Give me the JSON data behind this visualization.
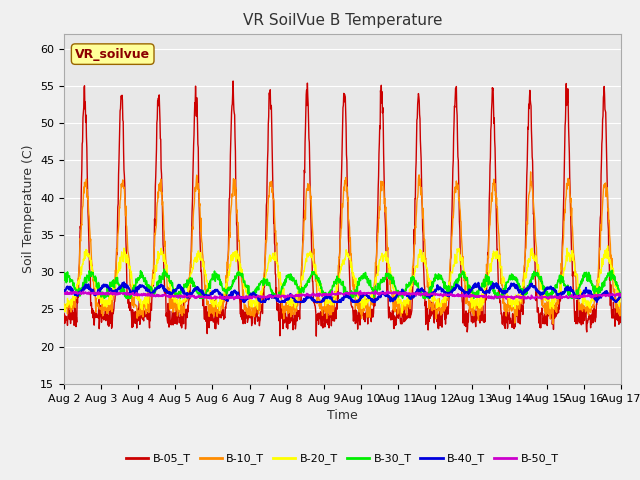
{
  "title": "VR SoilVue B Temperature",
  "xlabel": "Time",
  "ylabel": "Soil Temperature (C)",
  "ylim": [
    15,
    62
  ],
  "yticks": [
    15,
    20,
    25,
    30,
    35,
    40,
    45,
    50,
    55,
    60
  ],
  "xlim_days": [
    0,
    15
  ],
  "x_tick_labels": [
    "Aug 2",
    "Aug 3",
    "Aug 4",
    "Aug 5",
    "Aug 6",
    "Aug 7",
    "Aug 8",
    "Aug 9",
    "Aug 10",
    "Aug 11",
    "Aug 12",
    "Aug 13",
    "Aug 14",
    "Aug 15",
    "Aug 16",
    "Aug 17"
  ],
  "series": {
    "B-05_T": {
      "color": "#cc0000",
      "linewidth": 1.0
    },
    "B-10_T": {
      "color": "#ff8c00",
      "linewidth": 1.0
    },
    "B-20_T": {
      "color": "#ffff00",
      "linewidth": 1.0
    },
    "B-30_T": {
      "color": "#00ee00",
      "linewidth": 1.2
    },
    "B-40_T": {
      "color": "#0000dd",
      "linewidth": 1.5
    },
    "B-50_T": {
      "color": "#cc00cc",
      "linewidth": 1.2
    }
  },
  "legend_label": "VR_soilvue",
  "legend_bg": "#ffff99",
  "legend_border": "#996600",
  "plot_bg_color": "#e8e8e8",
  "grid_color": "#ffffff",
  "title_fontsize": 11,
  "axis_fontsize": 8,
  "label_fontsize": 9,
  "n_points": 1440,
  "days": 15
}
